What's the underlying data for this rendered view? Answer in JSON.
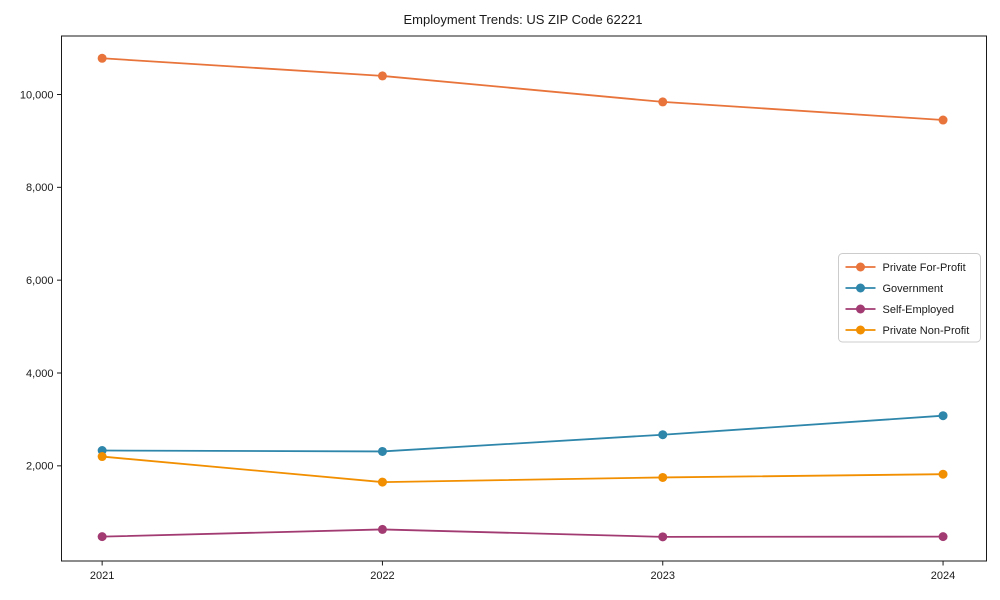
{
  "figure": {
    "background": "#ffffff"
  },
  "chart_data": {
    "type": "line",
    "title": "Employment Trends: US ZIP Code 62221",
    "xlabel": "",
    "ylabel": "",
    "x": [
      2021,
      2022,
      2023,
      2024
    ],
    "x_tick_labels": [
      "2021",
      "2022",
      "2023",
      "2024"
    ],
    "series": [
      {
        "name": "Private For-Profit",
        "color": "#E8743B",
        "values": [
          10780,
          10400,
          9840,
          9450
        ]
      },
      {
        "name": "Government",
        "color": "#2E86AB",
        "values": [
          2330,
          2310,
          2670,
          3080
        ]
      },
      {
        "name": "Self-Employed",
        "color": "#A23B72",
        "values": [
          475,
          630,
          470,
          475
        ]
      },
      {
        "name": "Private Non-Profit",
        "color": "#F18F01",
        "values": [
          2200,
          1650,
          1750,
          1820
        ]
      }
    ],
    "yticks": [
      2000,
      4000,
      6000,
      8000,
      10000
    ],
    "ytick_labels": [
      "2,000",
      "4,000",
      "6,000",
      "8,000",
      "10,000"
    ],
    "xlim": [
      2020.855,
      2024.155
    ],
    "ylim": [
      -50,
      11260
    ],
    "grid": false,
    "legend": {
      "position": "center-right",
      "frame": true
    }
  },
  "style": {
    "axis_color": "#1a1a1a",
    "text_color": "#1a1a1a",
    "legend_border_color": "#cccccc",
    "legend_background": "#ffffff"
  }
}
